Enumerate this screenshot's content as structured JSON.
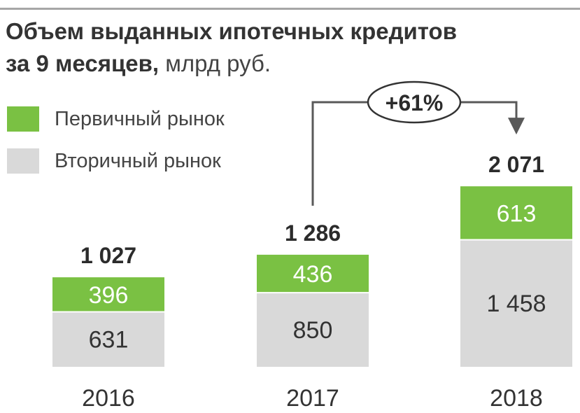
{
  "header": {
    "title_bold_line1": "Объем выданных ипотечных кредитов",
    "title_bold_line2": "за 9 месяцев,",
    "title_unit": "млрд руб."
  },
  "colors": {
    "primary": "#7ac143",
    "secondary": "#d9d9d9",
    "growth_line": "#595959"
  },
  "chart_data": {
    "type": "bar",
    "stacked": true,
    "categories": [
      "2016",
      "2017",
      "2018"
    ],
    "series": [
      {
        "name": "Вторичный рынок",
        "values": [
          631,
          850,
          1458
        ],
        "color": "#d9d9d9"
      },
      {
        "name": "Первичный рынок",
        "values": [
          396,
          436,
          613
        ],
        "color": "#7ac143"
      }
    ],
    "totals": [
      "1 027",
      "1 286",
      "2 071"
    ],
    "segment_labels": {
      "secondary": [
        "631",
        "850",
        "1 458"
      ],
      "primary": [
        "396",
        "436",
        "613"
      ]
    },
    "legend": [
      "Первичный рынок",
      "Вторичный рынок"
    ],
    "legend_position": "top-left",
    "annotation": {
      "text": "+61%",
      "from": "2017",
      "to": "2018"
    },
    "grid": false
  }
}
